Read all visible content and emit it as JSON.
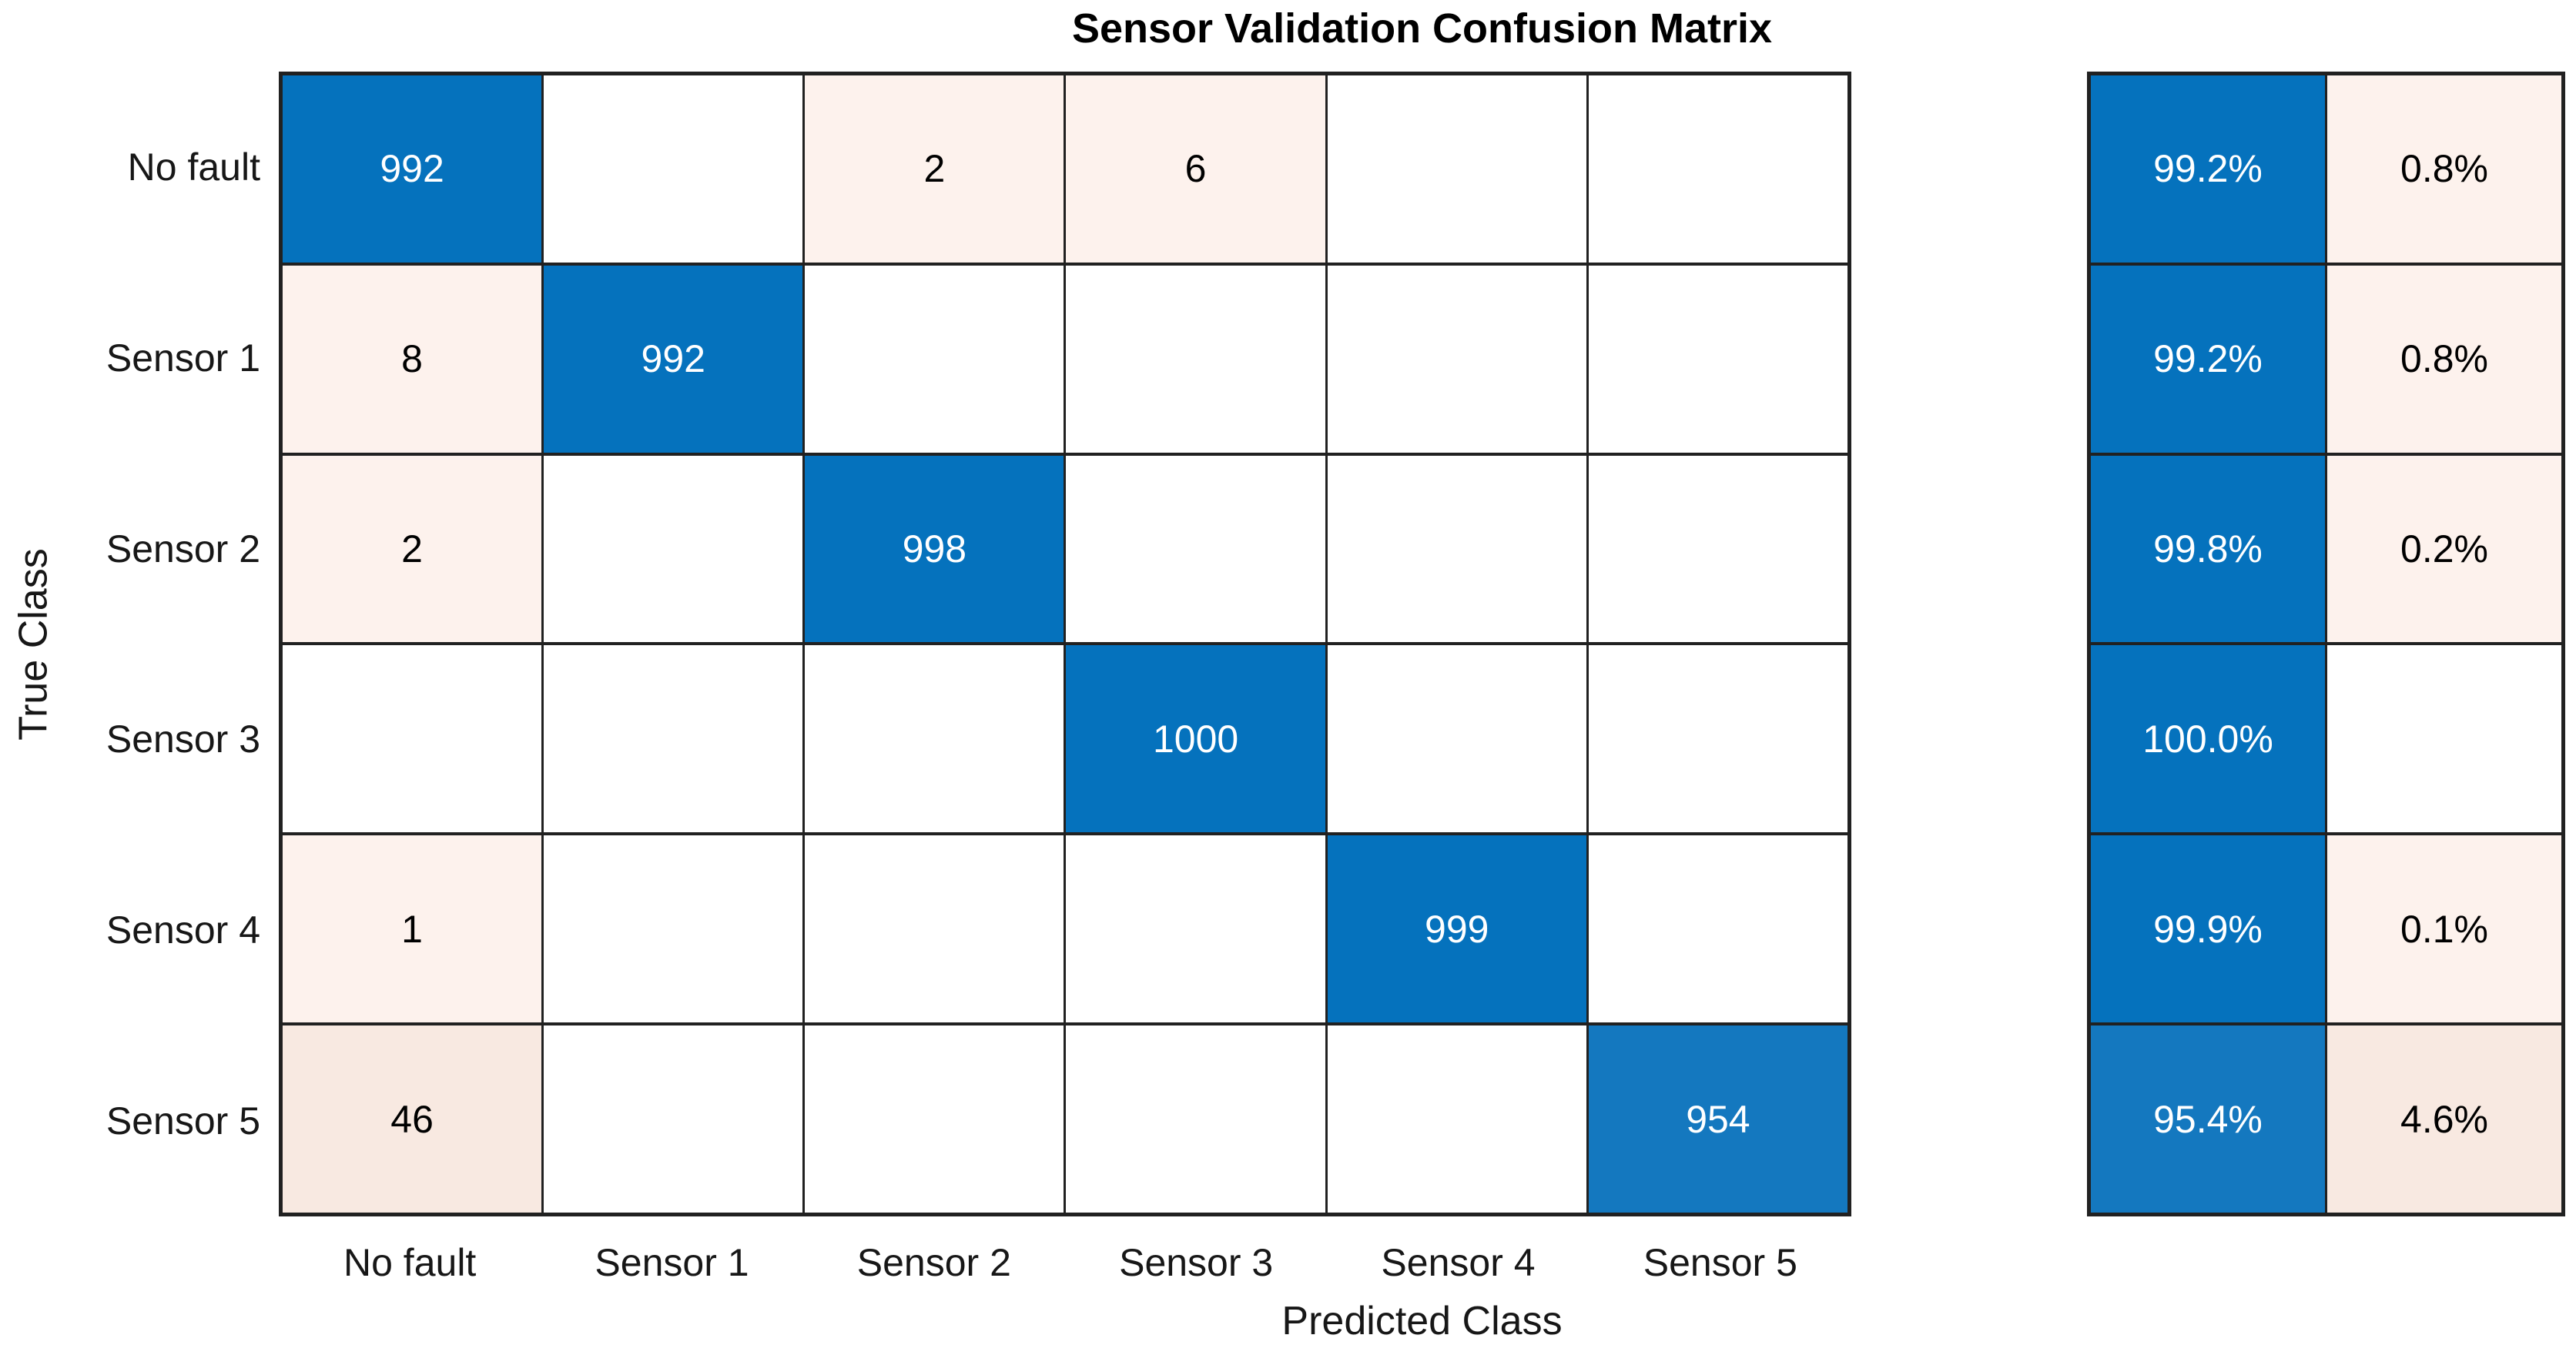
{
  "chart_data": {
    "type": "heatmap",
    "title": "Sensor Validation Confusion Matrix",
    "xlabel": "Predicted Class",
    "ylabel": "True Class",
    "classes": [
      "No fault",
      "Sensor 1",
      "Sensor 2",
      "Sensor 3",
      "Sensor 4",
      "Sensor 5"
    ],
    "matrix": [
      [
        992,
        null,
        2,
        6,
        null,
        null
      ],
      [
        8,
        992,
        null,
        null,
        null,
        null
      ],
      [
        2,
        null,
        998,
        null,
        null,
        null
      ],
      [
        null,
        null,
        null,
        1000,
        null,
        null
      ],
      [
        1,
        null,
        null,
        null,
        999,
        null
      ],
      [
        46,
        null,
        null,
        null,
        null,
        954
      ]
    ],
    "row_summary": [
      {
        "tpr": "99.2%",
        "fnr": "0.8%"
      },
      {
        "tpr": "99.2%",
        "fnr": "0.8%"
      },
      {
        "tpr": "99.8%",
        "fnr": "0.2%"
      },
      {
        "tpr": "100.0%",
        "fnr": null
      },
      {
        "tpr": "99.9%",
        "fnr": "0.1%"
      },
      {
        "tpr": "95.4%",
        "fnr": "4.6%"
      }
    ],
    "layout": {
      "grid_on": true,
      "summary_panel": "row-normalized true positive rate / false negative rate",
      "legend": "none"
    }
  },
  "colors": {
    "diagonal_blue": "#0572BD",
    "diagonal_blue_light": "#1478BF",
    "offdiagonal_pink_light": "#FDF2ED",
    "offdiagonal_pink_mid": "#F8E9E1",
    "empty_cell": "#FFFFFF",
    "grid_line": "#212121",
    "text_on_blue": "#FFFFFF",
    "text_on_light": "#000000",
    "background": "#FFFFFF"
  }
}
